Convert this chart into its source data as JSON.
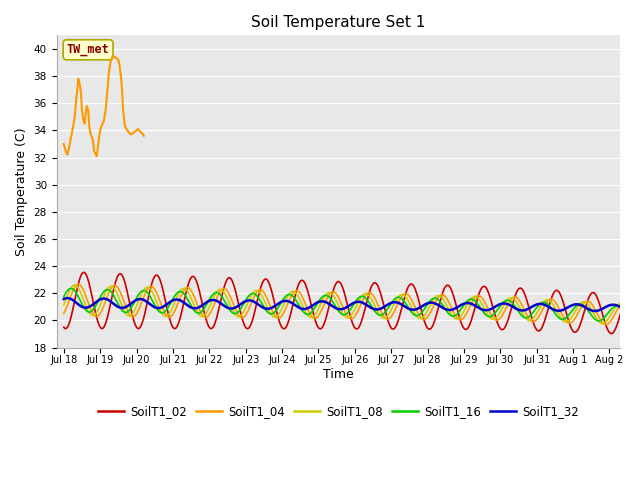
{
  "title": "Soil Temperature Set 1",
  "xlabel": "Time",
  "ylabel": "Soil Temperature (C)",
  "ylim": [
    18,
    41
  ],
  "yticks": [
    18,
    20,
    22,
    24,
    26,
    28,
    30,
    32,
    34,
    36,
    38,
    40
  ],
  "bg_color": "#e8e8e8",
  "fig_color": "#ffffff",
  "series_colors": {
    "SoilT1_02": "#cc0000",
    "SoilT1_04": "#ff9900",
    "SoilT1_08": "#cccc00",
    "SoilT1_16": "#00cc00",
    "SoilT1_32": "#0000cc"
  },
  "TW_met_label": "TW_met",
  "TW_met_color": "#880000",
  "TW_met_bg": "#ffffcc",
  "TW_met_edge": "#aaaa00",
  "xtick_labels": [
    "Jul 18",
    "Jul 19",
    "Jul 20",
    "Jul 21",
    "Jul 22",
    "Jul 23",
    "Jul 24",
    "Jul 25",
    "Jul 26",
    "Jul 27",
    "Jul 28",
    "Jul 29",
    "Jul 30",
    "Jul 31",
    "Aug 1",
    "Aug 2"
  ]
}
